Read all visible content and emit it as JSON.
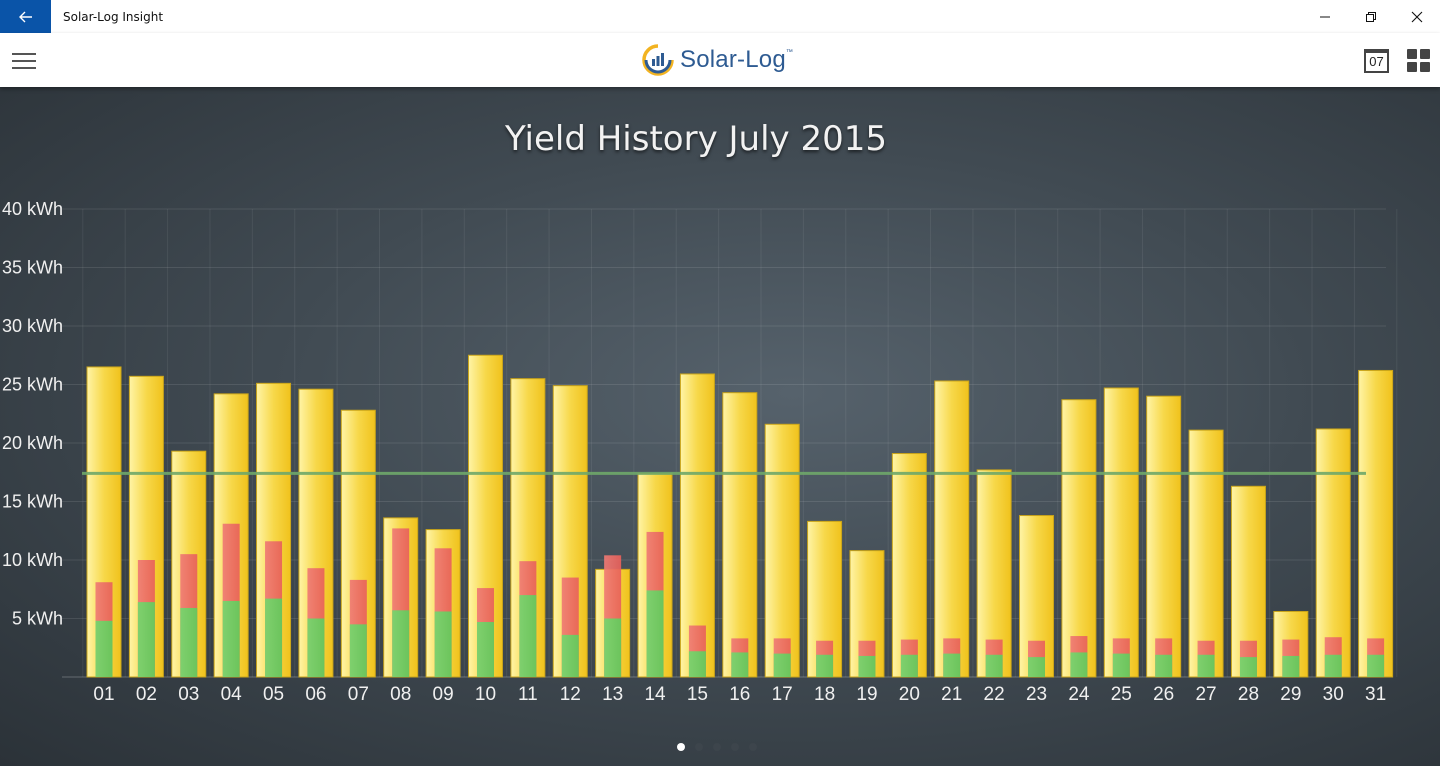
{
  "window": {
    "title": "Solar-Log Insight"
  },
  "header": {
    "logo_text": "Solar-Log",
    "logo_tm": "™",
    "calendar_day": "07"
  },
  "colors": {
    "accent": "#0a54a8",
    "yield_bar": "#f7d84a",
    "self_consumption": "#e8605a",
    "consumption_green": "#6cc45c",
    "target_line": "#6fa86a"
  },
  "chart_data": {
    "type": "bar",
    "title": "Yield History July 2015",
    "categories": [
      "01",
      "02",
      "03",
      "04",
      "05",
      "06",
      "07",
      "08",
      "09",
      "10",
      "11",
      "12",
      "13",
      "14",
      "15",
      "16",
      "17",
      "18",
      "19",
      "20",
      "21",
      "22",
      "23",
      "24",
      "25",
      "26",
      "27",
      "28",
      "29",
      "30",
      "31"
    ],
    "series": [
      {
        "values": [
          26.5,
          25.7,
          19.3,
          24.2,
          25.1,
          24.6,
          22.8,
          13.6,
          12.6,
          27.5,
          25.5,
          24.9,
          9.2,
          17.4,
          25.9,
          24.3,
          21.6,
          13.3,
          10.8,
          19.1,
          25.3,
          17.7,
          13.8,
          23.7,
          24.7,
          24.0,
          21.1,
          16.3,
          5.6,
          21.2,
          26.2
        ]
      },
      {
        "values": [
          8.1,
          10.0,
          10.5,
          13.1,
          11.6,
          9.3,
          8.3,
          12.7,
          11.0,
          7.6,
          9.9,
          8.5,
          10.4,
          12.4,
          4.4,
          3.3,
          3.3,
          3.1,
          3.1,
          3.2,
          3.3,
          3.2,
          3.1,
          3.5,
          3.3,
          3.3,
          3.1,
          3.1,
          3.2,
          3.4,
          3.3
        ]
      },
      {
        "values": [
          4.8,
          6.4,
          5.9,
          6.5,
          6.7,
          5.0,
          4.5,
          5.7,
          5.6,
          4.7,
          7.0,
          3.6,
          5.0,
          7.4,
          2.2,
          2.1,
          2.0,
          1.9,
          1.8,
          1.9,
          2.0,
          1.9,
          1.7,
          2.1,
          2.0,
          1.9,
          1.9,
          1.7,
          1.8,
          1.9,
          1.9
        ]
      }
    ],
    "target_line": 17.4,
    "y_ticks": [
      "5 kWh",
      "10 kWh",
      "15 kWh",
      "20 kWh",
      "25 kWh",
      "30 kWh",
      "35 kWh",
      "40 kWh"
    ],
    "ylim": [
      0,
      40
    ],
    "grid": true,
    "legend": "none"
  },
  "pager": {
    "count": 5,
    "active": 0
  }
}
